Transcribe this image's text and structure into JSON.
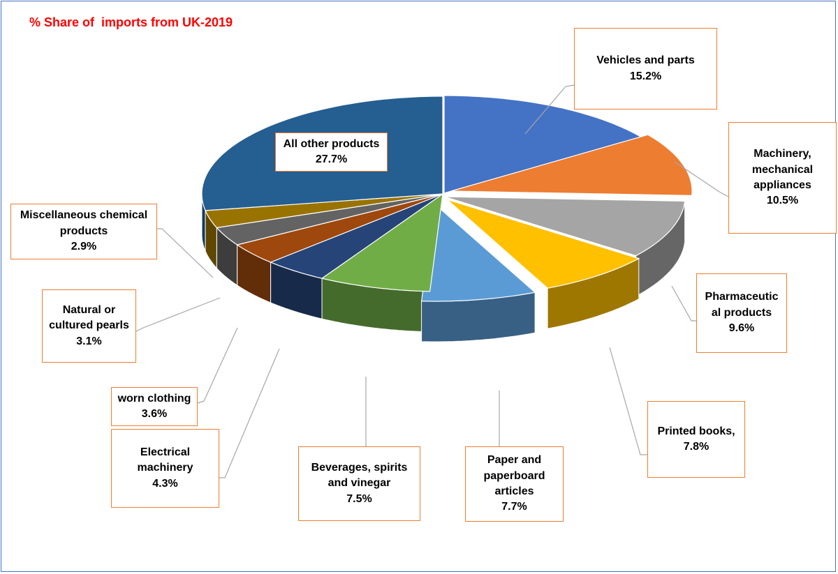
{
  "chart_data": {
    "type": "pie",
    "title": "% Share of  imports from UK-2019",
    "unit": "%",
    "slices": [
      {
        "label": "Vehicles  and parts",
        "value": 15.2,
        "display": "15.2%",
        "color": "#4472c4"
      },
      {
        "label": "Machinery,\nmechanical\nappliances",
        "value": 10.5,
        "display": "10.5%",
        "color": "#ed7d31"
      },
      {
        "label": "Pharmaceutic\nal products",
        "value": 9.6,
        "display": "9.6%",
        "color": "#a5a5a5"
      },
      {
        "label": "Printed books,",
        "value": 7.8,
        "display": "7.8%",
        "color": "#ffc000"
      },
      {
        "label": "Paper and\npaperboard\narticles",
        "value": 7.7,
        "display": "7.7%",
        "color": "#5b9bd5"
      },
      {
        "label": "Beverages, spirits\nand vinegar",
        "value": 7.5,
        "display": "7.5%",
        "color": "#70ad47"
      },
      {
        "label": "Electrical\nmachinery",
        "value": 4.3,
        "display": "4.3%",
        "color": "#264478"
      },
      {
        "label": "worn clothing",
        "value": 3.6,
        "display": "3.6%",
        "color": "#9e480e"
      },
      {
        "label": "Natural or\ncultured pearls",
        "value": 3.1,
        "display": "3.1%",
        "color": "#636363"
      },
      {
        "label": "Miscellaneous chemical\nproducts",
        "value": 2.9,
        "display": "2.9%",
        "color": "#997300"
      },
      {
        "label": "All other products",
        "value": 27.7,
        "display": "27.7%",
        "color": "#255e91"
      }
    ]
  }
}
